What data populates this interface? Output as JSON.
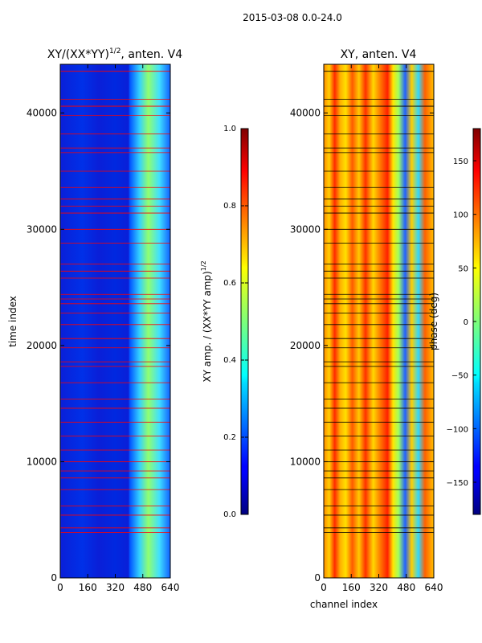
{
  "figure": {
    "suptitle": "2015-03-08 0.0-24.0"
  },
  "chart_data": [
    {
      "type": "heatmap",
      "title": "XY/(XX*YY)",
      "title_superscript": "1/2",
      "title_suffix": ", anten. V4",
      "xlabel": "",
      "ylabel": "time index",
      "xlim": [
        0,
        640
      ],
      "ylim": [
        0,
        44200
      ],
      "xticks": [
        0,
        160,
        320,
        480,
        640
      ],
      "yticks": [
        0,
        10000,
        20000,
        30000,
        40000
      ],
      "colorbar": {
        "label": "XY amp. / (XX*YY amp)",
        "label_superscript": "1/2",
        "range": [
          0.0,
          1.0
        ],
        "ticks": [
          "0.0",
          "0.2",
          "0.4",
          "0.6",
          "0.8",
          "1.0"
        ],
        "colormap": "jet"
      },
      "flag_line_color": "#ff0000"
    },
    {
      "type": "heatmap",
      "title": "XY, anten. V4",
      "xlabel": "channel index",
      "ylabel": "",
      "xlim": [
        0,
        640
      ],
      "ylim": [
        0,
        44200
      ],
      "xticks": [
        0,
        160,
        320,
        480,
        640
      ],
      "yticks": [
        0,
        10000,
        20000,
        30000,
        40000
      ],
      "colorbar": {
        "label": "phase (deg)",
        "range": [
          -180,
          180
        ],
        "ticks": [
          "150",
          "100",
          "50",
          "0",
          "−50",
          "−100",
          "−150"
        ],
        "tick_values": [
          150,
          100,
          50,
          0,
          -50,
          -100,
          -150
        ],
        "colormap": "jet"
      },
      "flag_line_color": "#000000"
    }
  ],
  "flag_rows": [
    3900,
    4300,
    5400,
    6200,
    7600,
    8600,
    9200,
    10000,
    11000,
    12200,
    13400,
    14600,
    15400,
    16800,
    18200,
    18600,
    19800,
    20600,
    21800,
    22800,
    23600,
    24000,
    24400,
    25800,
    26400,
    27000,
    28800,
    30000,
    31400,
    32000,
    32600,
    33600,
    35000,
    36600,
    37000,
    38200,
    39800,
    40600,
    41200,
    43600
  ]
}
